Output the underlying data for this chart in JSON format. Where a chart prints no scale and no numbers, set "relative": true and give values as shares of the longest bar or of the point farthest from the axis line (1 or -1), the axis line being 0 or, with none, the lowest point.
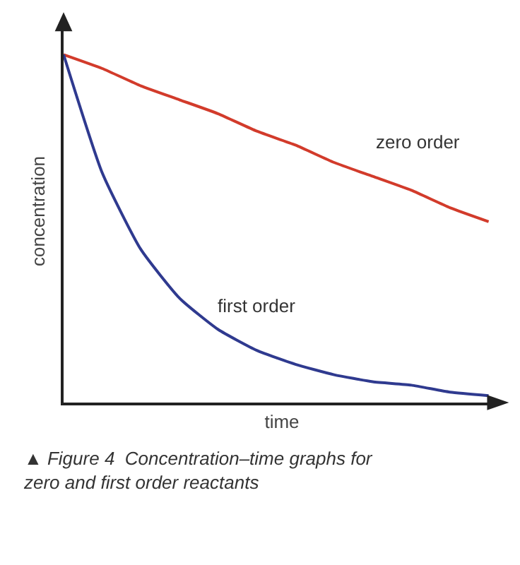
{
  "chart_data": {
    "type": "line",
    "relative": true,
    "xlabel": "time",
    "ylabel": "concentration",
    "categories": [
      null,
      null,
      null,
      null,
      null,
      null,
      null,
      null,
      null,
      null,
      null,
      null
    ],
    "series": [
      {
        "name": "zero order",
        "color": "#d23b2b",
        "values": [
          1,
          0.96,
          0.91,
          0.87,
          0.83,
          0.78,
          0.74,
          0.69,
          0.65,
          0.61,
          0.56,
          0.52
        ]
      },
      {
        "name": "first order",
        "color": "#2f3a8f",
        "values": [
          1,
          0.66,
          0.44,
          0.3,
          0.21,
          0.15,
          0.11,
          0.08,
          0.06,
          0.05,
          0.03,
          0.02
        ]
      }
    ],
    "legend": false,
    "marker": "none",
    "line_style": "solid",
    "annotations": [
      "▲ Figure 4  Concentration–time graphs for zero and first order reactants"
    ]
  }
}
